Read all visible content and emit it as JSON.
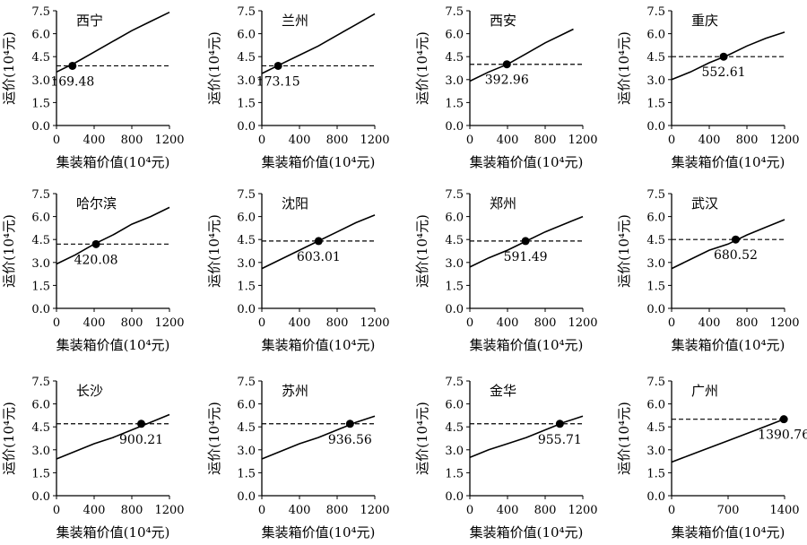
{
  "chart_data": [
    {
      "type": "line",
      "city": "西宁",
      "breakeven": 169.48,
      "breakeven_label": "169.48",
      "xlabel": "集装箱价值(10⁴元)",
      "ylabel": "运价(10⁴元)",
      "xlim": [
        0,
        1200
      ],
      "ylim": [
        0,
        7.5
      ],
      "xticks": [
        "0",
        "400",
        "800",
        "1200"
      ],
      "yticks": [
        "0.0",
        "1.5",
        "3.0",
        "4.5",
        "6.0",
        "7.5"
      ],
      "threshold": 3.9,
      "line": {
        "x": [
          0,
          200,
          400,
          600,
          800,
          1000,
          1200
        ],
        "y": [
          3.5,
          4.1,
          4.8,
          5.5,
          6.2,
          6.8,
          7.4
        ]
      }
    },
    {
      "type": "line",
      "city": "兰州",
      "breakeven": 173.15,
      "breakeven_label": "173.15",
      "xlabel": "集装箱价值(10⁴元)",
      "ylabel": "运价(10⁴元)",
      "xlim": [
        0,
        1200
      ],
      "ylim": [
        0,
        7.5
      ],
      "xticks": [
        "0",
        "400",
        "800",
        "1200"
      ],
      "yticks": [
        "0.0",
        "1.5",
        "3.0",
        "4.5",
        "6.0",
        "7.5"
      ],
      "threshold": 3.9,
      "line": {
        "x": [
          0,
          200,
          400,
          600,
          800,
          1000,
          1200
        ],
        "y": [
          3.4,
          4.0,
          4.6,
          5.2,
          5.9,
          6.6,
          7.3
        ]
      }
    },
    {
      "type": "line",
      "city": "西安",
      "breakeven": 392.96,
      "breakeven_label": "392.96",
      "xlabel": "集装箱价值(10⁴元)",
      "ylabel": "运价(10⁴元)",
      "xlim": [
        0,
        1200
      ],
      "ylim": [
        0,
        7.5
      ],
      "xticks": [
        "0",
        "400",
        "800",
        "1200"
      ],
      "yticks": [
        "0.0",
        "1.5",
        "3.0",
        "4.5",
        "6.0",
        "7.5"
      ],
      "threshold": 4.0,
      "line": {
        "x": [
          0,
          200,
          400,
          600,
          800,
          1000,
          1100
        ],
        "y": [
          2.9,
          3.5,
          4.0,
          4.7,
          5.4,
          6.0,
          6.3
        ]
      }
    },
    {
      "type": "line",
      "city": "重庆",
      "breakeven": 552.61,
      "breakeven_label": "552.61",
      "xlabel": "集装箱价值(10⁴元)",
      "ylabel": "运价(10⁴元)",
      "xlim": [
        0,
        1200
      ],
      "ylim": [
        0,
        7.5
      ],
      "xticks": [
        "0",
        "400",
        "800",
        "1200"
      ],
      "yticks": [
        "0.0",
        "1.5",
        "3.0",
        "4.5",
        "6.0",
        "7.5"
      ],
      "threshold": 4.5,
      "line": {
        "x": [
          0,
          200,
          400,
          600,
          800,
          1000,
          1200
        ],
        "y": [
          3.0,
          3.5,
          4.1,
          4.6,
          5.2,
          5.7,
          6.1
        ]
      }
    },
    {
      "type": "line",
      "city": "哈尔滨",
      "breakeven": 420.08,
      "breakeven_label": "420.08",
      "xlabel": "集装箱价值(10⁴元)",
      "ylabel": "运价(10⁴元)",
      "xlim": [
        0,
        1200
      ],
      "ylim": [
        0,
        7.5
      ],
      "xticks": [
        "0",
        "400",
        "800",
        "1200"
      ],
      "yticks": [
        "0.0",
        "1.5",
        "3.0",
        "4.5",
        "6.0",
        "7.5"
      ],
      "threshold": 4.2,
      "line": {
        "x": [
          0,
          200,
          400,
          600,
          800,
          1000,
          1200
        ],
        "y": [
          2.9,
          3.5,
          4.2,
          4.8,
          5.5,
          6.0,
          6.6
        ]
      }
    },
    {
      "type": "line",
      "city": "沈阳",
      "breakeven": 603.01,
      "breakeven_label": "603.01",
      "xlabel": "集装箱价值(10⁴元)",
      "ylabel": "运价(10⁴元)",
      "xlim": [
        0,
        1200
      ],
      "ylim": [
        0,
        7.5
      ],
      "xticks": [
        "0",
        "400",
        "800",
        "1200"
      ],
      "yticks": [
        "0.0",
        "1.5",
        "3.0",
        "4.5",
        "6.0",
        "7.5"
      ],
      "threshold": 4.4,
      "line": {
        "x": [
          0,
          200,
          400,
          600,
          800,
          1000,
          1200
        ],
        "y": [
          2.6,
          3.2,
          3.8,
          4.4,
          5.0,
          5.6,
          6.1
        ]
      }
    },
    {
      "type": "line",
      "city": "郑州",
      "breakeven": 591.49,
      "breakeven_label": "591.49",
      "xlabel": "集装箱价值(10⁴元)",
      "ylabel": "运价(10⁴元)",
      "xlim": [
        0,
        1200
      ],
      "ylim": [
        0,
        7.5
      ],
      "xticks": [
        "0",
        "400",
        "800",
        "1200"
      ],
      "yticks": [
        "0.0",
        "1.5",
        "3.0",
        "4.5",
        "6.0",
        "7.5"
      ],
      "threshold": 4.4,
      "line": {
        "x": [
          0,
          200,
          400,
          600,
          800,
          1000,
          1200
        ],
        "y": [
          2.7,
          3.3,
          3.8,
          4.4,
          5.0,
          5.5,
          6.0
        ]
      }
    },
    {
      "type": "line",
      "city": "武汉",
      "breakeven": 680.52,
      "breakeven_label": "680.52",
      "xlabel": "集装箱价值(10⁴元)",
      "ylabel": "运价(10⁴元)",
      "xlim": [
        0,
        1200
      ],
      "ylim": [
        0,
        7.5
      ],
      "xticks": [
        "0",
        "400",
        "800",
        "1200"
      ],
      "yticks": [
        "0.0",
        "1.5",
        "3.0",
        "4.5",
        "6.0",
        "7.5"
      ],
      "threshold": 4.5,
      "line": {
        "x": [
          0,
          200,
          400,
          600,
          800,
          1000,
          1200
        ],
        "y": [
          2.6,
          3.2,
          3.8,
          4.2,
          4.8,
          5.3,
          5.8
        ]
      }
    },
    {
      "type": "line",
      "city": "长沙",
      "breakeven": 900.21,
      "breakeven_label": "900.21",
      "xlabel": "集装箱价值(10⁴元)",
      "ylabel": "运价(10⁴元)",
      "xlim": [
        0,
        1200
      ],
      "ylim": [
        0,
        7.5
      ],
      "xticks": [
        "0",
        "400",
        "800",
        "1200"
      ],
      "yticks": [
        "0.0",
        "1.5",
        "3.0",
        "4.5",
        "6.0",
        "7.5"
      ],
      "threshold": 4.7,
      "line": {
        "x": [
          0,
          200,
          400,
          600,
          800,
          1000,
          1200
        ],
        "y": [
          2.4,
          2.9,
          3.4,
          3.8,
          4.3,
          4.8,
          5.3
        ]
      }
    },
    {
      "type": "line",
      "city": "苏州",
      "breakeven": 936.56,
      "breakeven_label": "936.56",
      "xlabel": "集装箱价值(10⁴元)",
      "ylabel": "运价(10⁴元)",
      "xlim": [
        0,
        1200
      ],
      "ylim": [
        0,
        7.5
      ],
      "xticks": [
        "0",
        "400",
        "800",
        "1200"
      ],
      "yticks": [
        "0.0",
        "1.5",
        "3.0",
        "4.5",
        "6.0",
        "7.5"
      ],
      "threshold": 4.7,
      "line": {
        "x": [
          0,
          200,
          400,
          600,
          800,
          1000,
          1200
        ],
        "y": [
          2.4,
          2.9,
          3.4,
          3.8,
          4.3,
          4.8,
          5.2
        ]
      }
    },
    {
      "type": "line",
      "city": "金华",
      "breakeven": 955.71,
      "breakeven_label": "955.71",
      "xlabel": "集装箱价值(10⁴元)",
      "ylabel": "运价(10⁴元)",
      "xlim": [
        0,
        1200
      ],
      "ylim": [
        0,
        7.5
      ],
      "xticks": [
        "0",
        "400",
        "800",
        "1200"
      ],
      "yticks": [
        "0.0",
        "1.5",
        "3.0",
        "4.5",
        "6.0",
        "7.5"
      ],
      "threshold": 4.7,
      "line": {
        "x": [
          0,
          200,
          400,
          600,
          800,
          1000,
          1200
        ],
        "y": [
          2.5,
          3.0,
          3.4,
          3.8,
          4.3,
          4.8,
          5.2
        ]
      }
    },
    {
      "type": "line",
      "city": "广州",
      "breakeven": 1390.76,
      "breakeven_label": "1390.76",
      "xlabel": "集装箱价值(10⁴元)",
      "ylabel": "运价(10⁴元)",
      "xlim": [
        0,
        1400
      ],
      "ylim": [
        0,
        7.5
      ],
      "xticks": [
        "0",
        "700",
        "1400"
      ],
      "yticks": [
        "0.0",
        "1.5",
        "3.0",
        "4.5",
        "6.0",
        "7.5"
      ],
      "threshold": 5.0,
      "line": {
        "x": [
          0,
          350,
          700,
          1050,
          1390
        ],
        "y": [
          2.2,
          2.9,
          3.6,
          4.3,
          5.0
        ]
      }
    }
  ]
}
